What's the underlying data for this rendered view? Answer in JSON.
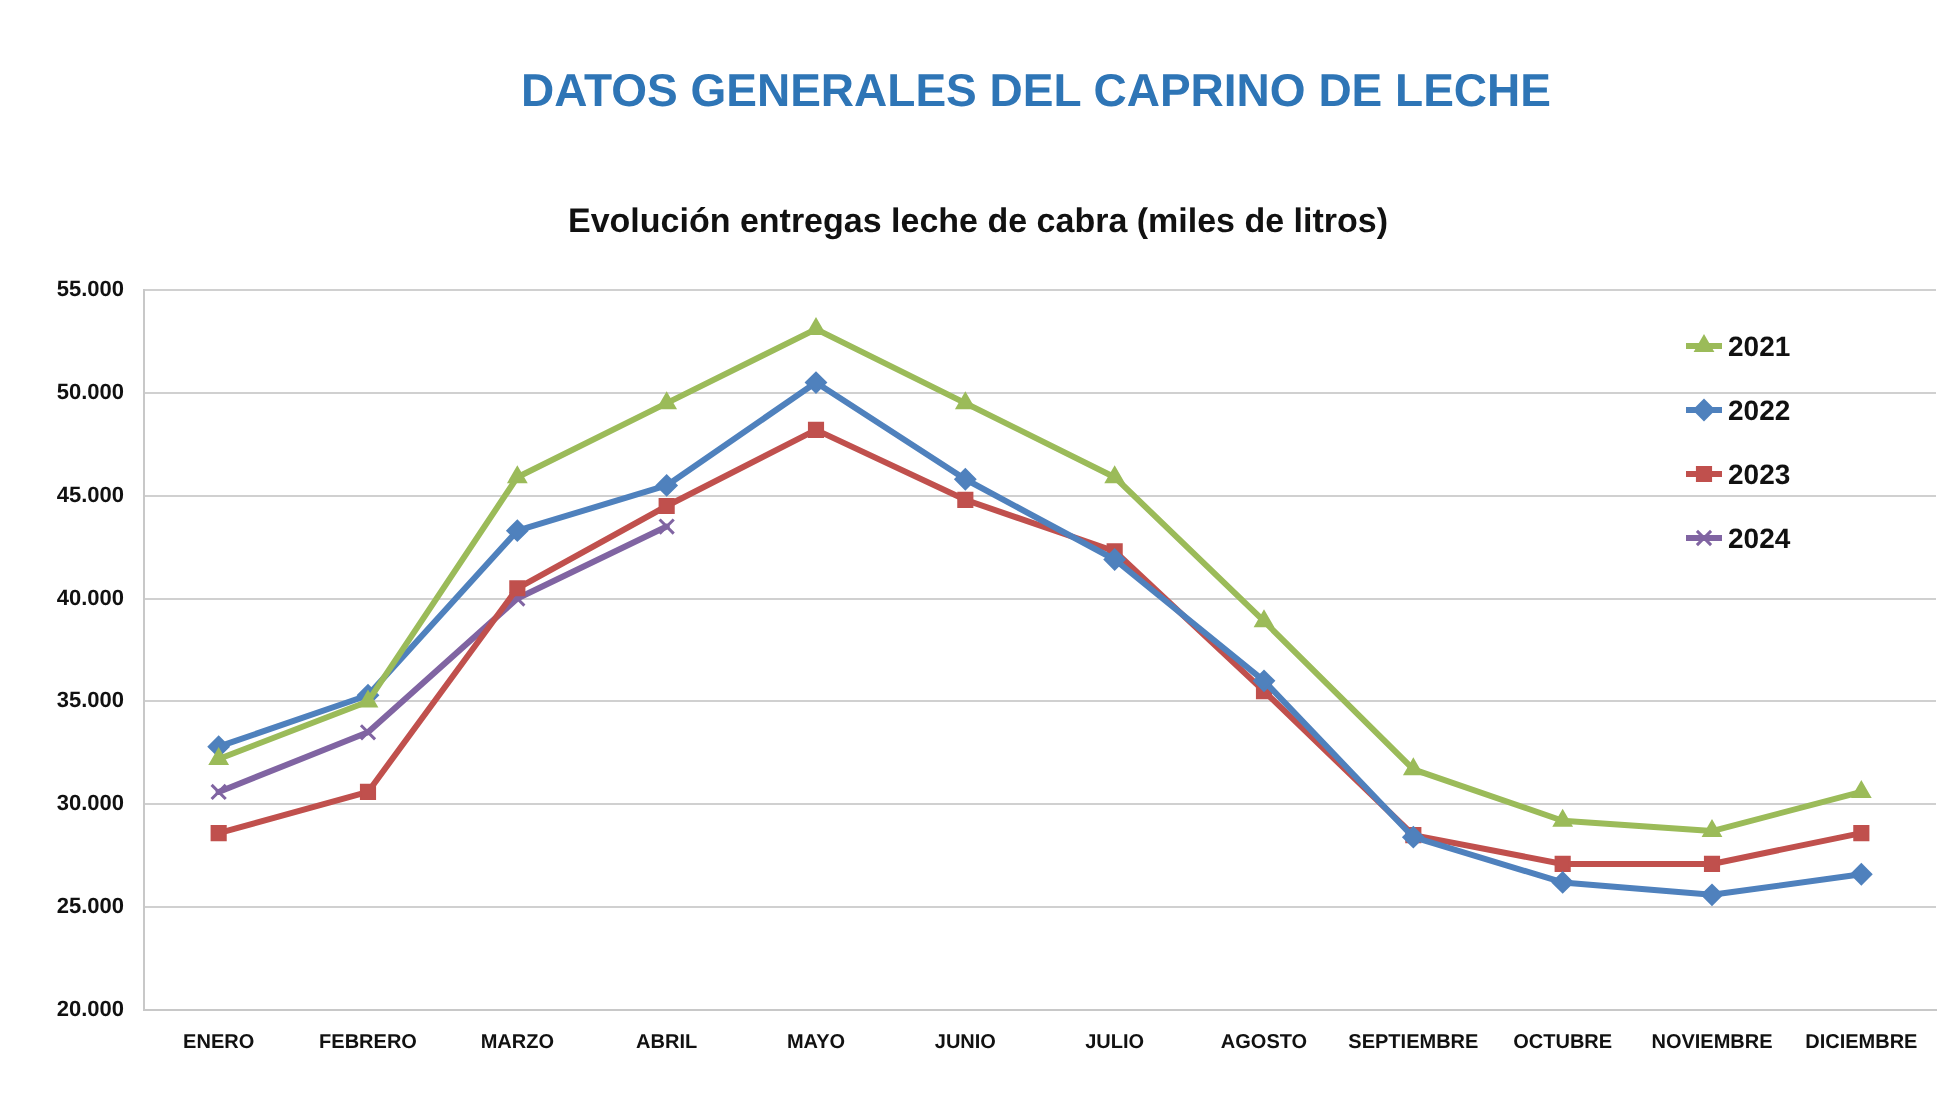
{
  "chart_data": {
    "type": "line",
    "title": "DATOS GENERALES DEL CAPRINO DE LECHE",
    "subtitle": "Evolución entregas leche de cabra (miles de litros)",
    "categories": [
      "ENERO",
      "FEBRERO",
      "MARZO",
      "ABRIL",
      "MAYO",
      "JUNIO",
      "JULIO",
      "AGOSTO",
      "SEPTIEMBRE",
      "OCTUBRE",
      "NOVIEMBRE",
      "DICIEMBRE"
    ],
    "series": [
      {
        "name": "2021",
        "color": "#9bbb59",
        "marker": "triangle",
        "values": [
          32200,
          35000,
          45900,
          49500,
          53100,
          49500,
          45900,
          38900,
          31700,
          29200,
          28700,
          30600
        ]
      },
      {
        "name": "2022",
        "color": "#4f81bd",
        "marker": "diamond",
        "values": [
          32800,
          35300,
          43300,
          45500,
          50500,
          45800,
          41900,
          36000,
          28400,
          26200,
          25600,
          26600
        ]
      },
      {
        "name": "2023",
        "color": "#c0504d",
        "marker": "square",
        "values": [
          28600,
          30600,
          40500,
          44500,
          48200,
          44800,
          42300,
          35500,
          28500,
          27100,
          27100,
          28600
        ]
      },
      {
        "name": "2024",
        "color": "#8064a2",
        "marker": "cross",
        "values": [
          30600,
          33500,
          40000,
          43500,
          null,
          null,
          null,
          null,
          null,
          null,
          null,
          null
        ]
      }
    ],
    "ylim": [
      20000,
      55000
    ],
    "yticks": [
      {
        "value": 20000,
        "label": "20.000"
      },
      {
        "value": 25000,
        "label": "25.000"
      },
      {
        "value": 30000,
        "label": "30.000"
      },
      {
        "value": 35000,
        "label": "35.000"
      },
      {
        "value": 40000,
        "label": "40.000"
      },
      {
        "value": 45000,
        "label": "45.000"
      },
      {
        "value": 50000,
        "label": "50.000"
      },
      {
        "value": 55000,
        "label": "55.000"
      }
    ],
    "grid": "y",
    "legend": "top right",
    "line_style": "solid"
  }
}
